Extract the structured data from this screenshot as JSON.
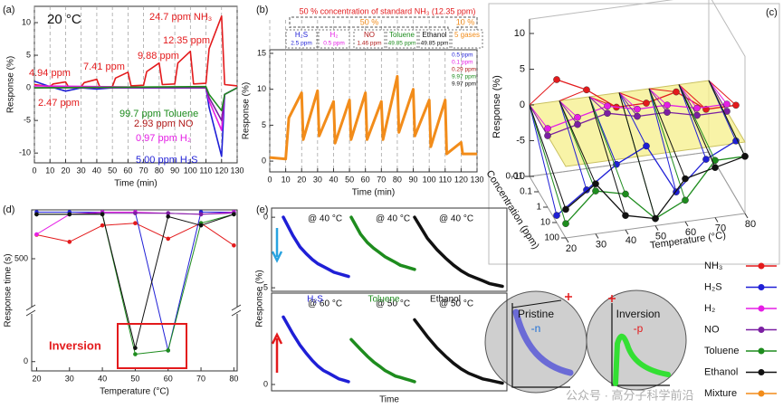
{
  "chart_data": [
    {
      "type": "line",
      "label": "(a)",
      "title": "20 °C",
      "xlabel": "Time (min)",
      "ylabel": "Response (%)",
      "xlim": [
        0,
        130
      ],
      "xticks": [
        0,
        10,
        20,
        30,
        40,
        50,
        60,
        70,
        80,
        90,
        100,
        110,
        120,
        130
      ],
      "ylim": [
        -11.5,
        12.5
      ],
      "yticks": [
        -10,
        -5,
        0,
        5,
        10
      ],
      "grid": "x",
      "series": [
        {
          "color": "#e31a1c",
          "x": [
            0,
            10,
            12,
            20,
            22,
            30,
            32,
            40,
            42,
            50,
            52,
            60,
            62,
            70,
            72,
            80,
            82,
            90,
            92,
            100,
            102,
            110,
            112,
            120,
            122,
            130
          ],
          "values": [
            0.5,
            0.2,
            0.6,
            0.9,
            0.1,
            0.2,
            0.8,
            1.3,
            0.1,
            0.2,
            1.5,
            2.4,
            0.3,
            0.4,
            2.5,
            3.8,
            0.5,
            0.6,
            3.8,
            5.6,
            0.6,
            0.7,
            6,
            11,
            0.5,
            0.3
          ]
        },
        {
          "color": "#1f1fd6",
          "x": [
            0,
            10,
            20,
            30,
            40,
            50,
            60,
            70,
            80,
            90,
            100,
            110,
            112,
            120,
            122,
            130
          ],
          "values": [
            1,
            0.2,
            -0.5,
            0,
            -0.2,
            0,
            0,
            0,
            0,
            0,
            0,
            0,
            -3,
            -10.5,
            -1,
            0
          ]
        },
        {
          "color": "#e51ee5",
          "x": [
            0,
            110,
            112,
            120,
            122,
            130
          ],
          "values": [
            0.3,
            0,
            -2,
            -6.5,
            -1,
            0
          ]
        },
        {
          "color": "#7b1fa2",
          "x": [
            0,
            110,
            112,
            120,
            122,
            130
          ],
          "values": [
            0,
            0,
            -1.5,
            -5,
            -1,
            0
          ]
        },
        {
          "color": "#1e8c1e",
          "x": [
            0,
            110,
            112,
            120,
            122,
            130
          ],
          "values": [
            0,
            0.2,
            -1,
            -3.5,
            -1,
            0
          ]
        }
      ],
      "annotations": [
        {
          "text": "24.7 ppm NH₃",
          "color": "#e31a1c"
        },
        {
          "text": "12.35 ppm",
          "color": "#e31a1c"
        },
        {
          "text": "9.88 ppm",
          "color": "#e31a1c"
        },
        {
          "text": "7.41 ppm",
          "color": "#e31a1c"
        },
        {
          "text": "4.94 ppm",
          "color": "#e31a1c"
        },
        {
          "text": "2.47 ppm",
          "color": "#e31a1c"
        },
        {
          "text": "99.7 ppm Toluene",
          "color": "#1e8c1e"
        },
        {
          "text": "2.93 ppm NO",
          "color": "#b01818"
        },
        {
          "text": "0.97 ppm H₂",
          "color": "#e51ee5"
        },
        {
          "text": "5.00 ppm H₂S",
          "color": "#1f1fd6"
        }
      ]
    },
    {
      "type": "line",
      "label": "(b)",
      "xlabel": "Time (min)",
      "ylabel": "Response (%)",
      "xlim": [
        0,
        130
      ],
      "xticks": [
        0,
        10,
        20,
        30,
        40,
        50,
        60,
        70,
        80,
        90,
        100,
        110,
        120,
        130
      ],
      "ylim": [
        -1.5,
        15.5
      ],
      "yticks": [
        0,
        5,
        10,
        15
      ],
      "grid": "x",
      "header": "50 % concentration of standard NH₃ (12.35 ppm)",
      "subheaders": [
        "50 %",
        "10 %"
      ],
      "header_color": "#e31a1c",
      "subheader_color": "#f28c1a",
      "gases": [
        {
          "name": "H₂S",
          "conc": "2.5 ppm",
          "color": "#1f1fd6"
        },
        {
          "name": "H₂",
          "conc": "0.5 ppm",
          "color": "#e51ee5"
        },
        {
          "name": "NO",
          "conc": "1.46 ppm",
          "color": "#b01818"
        },
        {
          "name": "Toluene",
          "conc": "49.85 ppm",
          "color": "#1e8c1e"
        },
        {
          "name": "Ethanol",
          "conc": "49.85 ppm",
          "color": "#111111"
        },
        {
          "name": "5 gases",
          "color": "#f28c1a"
        }
      ],
      "inset_labels": [
        {
          "text": "0.5 ppm",
          "color": "#1f1fd6"
        },
        {
          "text": "0.1 ppm",
          "color": "#e51ee5"
        },
        {
          "text": "0.29 ppm",
          "color": "#b01818"
        },
        {
          "text": "9.97 ppm",
          "color": "#1e8c1e"
        },
        {
          "text": "9.97 ppm",
          "color": "#111111"
        }
      ],
      "series": [
        {
          "color": "#f28c1a",
          "x": [
            0,
            10,
            12,
            20,
            21,
            30,
            31,
            40,
            41,
            50,
            51,
            60,
            61,
            70,
            71,
            80,
            81,
            90,
            91,
            100,
            101,
            110,
            111,
            120,
            121,
            130
          ],
          "values": [
            0.5,
            0.3,
            6,
            9.5,
            3,
            9.8,
            3.5,
            8.3,
            2.5,
            8.5,
            3,
            9.5,
            3,
            8.3,
            3,
            11.8,
            4,
            10,
            3.5,
            8.5,
            2,
            8.5,
            1,
            2.6,
            1,
            1
          ]
        }
      ]
    },
    {
      "type": "scatter3d",
      "label": "(c)",
      "zlabel": "Response (%)",
      "ylabel": "Concentration (ppm)",
      "xlabel": "Temperature (°C)",
      "xlim": [
        20,
        80
      ],
      "xticks": [
        20,
        30,
        40,
        50,
        60,
        70,
        80
      ],
      "ylim": [
        0.01,
        100
      ],
      "yticks": [
        0.01,
        0.1,
        1,
        10,
        100
      ],
      "ylog": true,
      "zlim": [
        -10,
        12
      ],
      "zticks": [
        -10,
        -5,
        0,
        5,
        10
      ],
      "series": [
        {
          "color": "#e31a1c",
          "x": [
            20,
            30,
            40,
            50,
            60,
            70,
            80
          ],
          "y": [
            10,
            10,
            10,
            10,
            10,
            10,
            10
          ],
          "z": [
            10,
            8,
            5,
            5,
            6,
            3,
            3
          ]
        },
        {
          "color": "#1f1fd6",
          "x": [
            20,
            30,
            40,
            50,
            60,
            70,
            80
          ],
          "y": [
            10,
            10,
            10,
            10,
            10,
            10,
            10
          ],
          "z": [
            -9,
            -6,
            -3,
            -1,
            -8,
            -4,
            -2
          ]
        },
        {
          "color": "#e51ee5",
          "x": [
            20,
            30,
            40,
            50,
            60,
            70,
            80
          ],
          "y": [
            1,
            1,
            1,
            1,
            1,
            1,
            1
          ],
          "z": [
            1,
            2,
            3,
            2,
            2,
            1,
            1
          ]
        },
        {
          "color": "#7b1fa2",
          "x": [
            20,
            30,
            40,
            50,
            60,
            70,
            80
          ],
          "y": [
            1,
            1,
            1,
            1,
            1,
            1,
            1
          ],
          "z": [
            0,
            1,
            2,
            1,
            1,
            0,
            0
          ]
        },
        {
          "color": "#1e8c1e",
          "x": [
            20,
            30,
            40,
            50,
            60,
            70,
            80
          ],
          "y": [
            100,
            100,
            100,
            100,
            100,
            100,
            100
          ],
          "z": [
            -8,
            -4,
            -5,
            -9,
            -7,
            -2,
            -2
          ]
        },
        {
          "color": "#111111",
          "x": [
            20,
            30,
            40,
            50,
            60,
            70,
            80
          ],
          "y": [
            100,
            100,
            100,
            100,
            100,
            100,
            100
          ],
          "z": [
            -6,
            -3,
            -8,
            -9,
            -4,
            -3,
            -2
          ]
        }
      ]
    },
    {
      "type": "line",
      "label": "(d)",
      "xlabel": "Temperature (°C)",
      "ylabel": "Response time (s)",
      "annotation": "Inversion",
      "xlim": [
        18.5,
        81
      ],
      "xticks": [
        20,
        30,
        40,
        50,
        60,
        70,
        80
      ],
      "ylim": [
        -15,
        720
      ],
      "ybreak": [
        80,
        280
      ],
      "yticks": [
        0,
        500
      ],
      "x": [
        20,
        30,
        40,
        50,
        60,
        70,
        80
      ],
      "series": [
        {
          "color": "#e31a1c",
          "values": [
            608,
            576,
            650,
            660,
            590,
            660,
            560
          ]
        },
        {
          "color": "#1f1fd6",
          "values": [
            710,
            710,
            710,
            710,
            18,
            710,
            710
          ]
        },
        {
          "color": "#e51ee5",
          "values": [
            610,
            700,
            710,
            710,
            705,
            700,
            710
          ]
        },
        {
          "color": "#7b1fa2",
          "values": [
            700,
            700,
            705,
            705,
            705,
            700,
            705
          ]
        },
        {
          "color": "#1e8c1e",
          "values": [
            700,
            700,
            700,
            12,
            18,
            660,
            700
          ]
        },
        {
          "color": "#111111",
          "values": [
            700,
            700,
            700,
            22,
            690,
            650,
            700
          ]
        }
      ]
    },
    {
      "type": "line-multiples",
      "label": "(e)",
      "xlabel": "Time",
      "ylabel": "Response (%)",
      "gas_labels": [
        {
          "text": "H₂S",
          "color": "#1f1fd6"
        },
        {
          "text": "Toluene",
          "color": "#1e8c1e"
        },
        {
          "text": "Ethanol",
          "color": "#111111"
        }
      ],
      "panels": [
        {
          "ylim": [
            -5.25,
            0.65
          ],
          "yticks": [
            0,
            -5
          ],
          "curves": [
            {
              "label": "@ 40 °C",
              "color": "#1f1fd6",
              "values": [
                0,
                -1.3,
                -2.1,
                -2.6,
                -3,
                -3.3,
                -3.5,
                -3.7,
                -3.9,
                -4,
                -4.1,
                -4.2
              ]
            },
            {
              "label": "@ 40 °C",
              "color": "#1e8c1e",
              "values": [
                0,
                -1.2,
                -1.8,
                -2.2,
                -2.5,
                -2.8,
                -3,
                -3.2,
                -3.4,
                -3.5,
                -3.6,
                -3.7
              ]
            },
            {
              "label": "@ 40 °C",
              "color": "#111111",
              "values": [
                0,
                -1.5,
                -2.3,
                -2.9,
                -3.4,
                -3.8,
                -4.1,
                -4.3,
                -4.5,
                -4.7,
                -4.8,
                -4.9
              ]
            }
          ]
        },
        {
          "ylim": [
            -0.45,
            6.5
          ],
          "yticks": [
            0
          ],
          "curves": [
            {
              "label": "@ 60 °C",
              "color": "#1f1fd6",
              "values": [
                4.8,
                3.6,
                2.8,
                2.2,
                1.7,
                1.3,
                1,
                0.8,
                0.6,
                0.4,
                0.3,
                0.2
              ]
            },
            {
              "label": "@ 50 °C",
              "color": "#1e8c1e",
              "values": [
                3.2,
                2.5,
                2,
                1.6,
                1.3,
                1,
                0.8,
                0.6,
                0.5,
                0.4,
                0.3,
                0.2
              ]
            },
            {
              "label": "@ 50 °C",
              "color": "#111111",
              "values": [
                4.6,
                3.4,
                2.6,
                2,
                1.5,
                1.1,
                0.8,
                0.6,
                0.4,
                0.3,
                0.2,
                0.1
              ]
            }
          ]
        }
      ]
    }
  ],
  "legend": {
    "items": [
      {
        "name": "NH₃",
        "color": "#e31a1c"
      },
      {
        "name": "H₂S",
        "color": "#1f1fd6"
      },
      {
        "name": "H₂",
        "color": "#e51ee5"
      },
      {
        "name": "NO",
        "color": "#7b1fa2"
      },
      {
        "name": "Toluene",
        "color": "#1e8c1e"
      },
      {
        "name": "Ethanol",
        "color": "#111111"
      },
      {
        "name": "Mixture",
        "color": "#f28c1a"
      }
    ]
  },
  "schematic": {
    "pristine": {
      "title": "Pristine",
      "carrier": "-n"
    },
    "inversion": {
      "title": "Inversion",
      "carrier": "-p"
    }
  },
  "watermark": "公众号 · 高分子科学前沿"
}
